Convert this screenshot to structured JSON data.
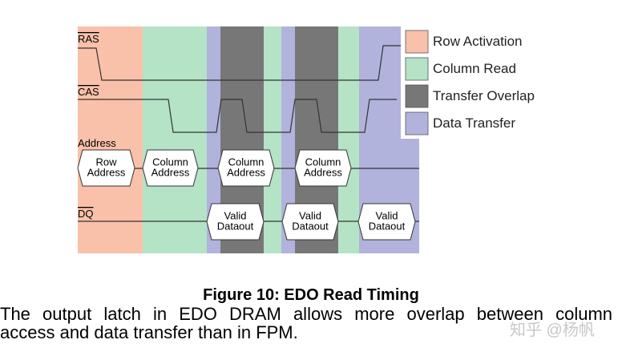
{
  "diagram": {
    "signals": {
      "ras": "RAS",
      "cas": "CAS",
      "address": "Address",
      "dq": "DQ"
    },
    "address_boxes": [
      [
        "Row",
        "Address"
      ],
      [
        "Column",
        "Address"
      ],
      [
        "Column",
        "Address"
      ],
      [
        "Column",
        "Address"
      ]
    ],
    "dq_boxes": [
      [
        "Valid",
        "Dataout"
      ],
      [
        "Valid",
        "Dataout"
      ],
      [
        "Valid",
        "Dataout"
      ]
    ],
    "legend": [
      "Row Activation",
      "Column Read",
      "Transfer Overlap",
      "Data Transfer"
    ]
  },
  "caption": "Figure 10: EDO Read Timing",
  "paragraph": [
    "The output latch in EDO DRAM allows more overlap between column",
    "access and data transfer than in FPM."
  ],
  "watermark": "知乎 @杨帆"
}
